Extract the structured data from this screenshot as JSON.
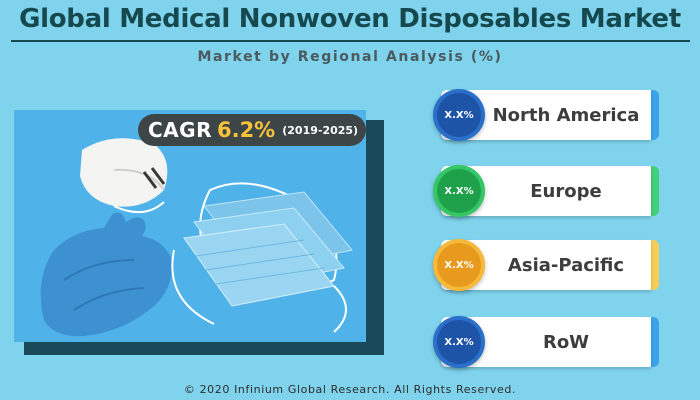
{
  "header": {
    "title": "Global Medical Nonwoven Disposables Market",
    "subtitle": "Market by Regional Analysis (%)"
  },
  "cagr": {
    "label": "CAGR",
    "value": "6.2%",
    "period": "(2019-2025)"
  },
  "regions": [
    {
      "value": "X.X%",
      "name": "North America",
      "circle_color": "#2a6fc9",
      "circle_inner": "#1e54a8",
      "accent": "#3aa3ea"
    },
    {
      "value": "X.X%",
      "name": "Europe",
      "circle_color": "#35c766",
      "circle_inner": "#1fa14c",
      "accent": "#43d07a"
    },
    {
      "value": "X.X%",
      "name": "Asia-Pacific",
      "circle_color": "#f6b93a",
      "circle_inner": "#e89a1e",
      "accent": "#f7cd55"
    },
    {
      "value": "X.X%",
      "name": "RoW",
      "circle_color": "#2a6fc9",
      "circle_inner": "#1e54a8",
      "accent": "#3aa3ea"
    }
  ],
  "footer": {
    "copyright": "© 2020 Infinium Global Research. All Rights Reserved."
  },
  "photo": {
    "icons": [
      "face-mask-icon",
      "n95-respirator-icon",
      "medical-glove-icon"
    ]
  }
}
